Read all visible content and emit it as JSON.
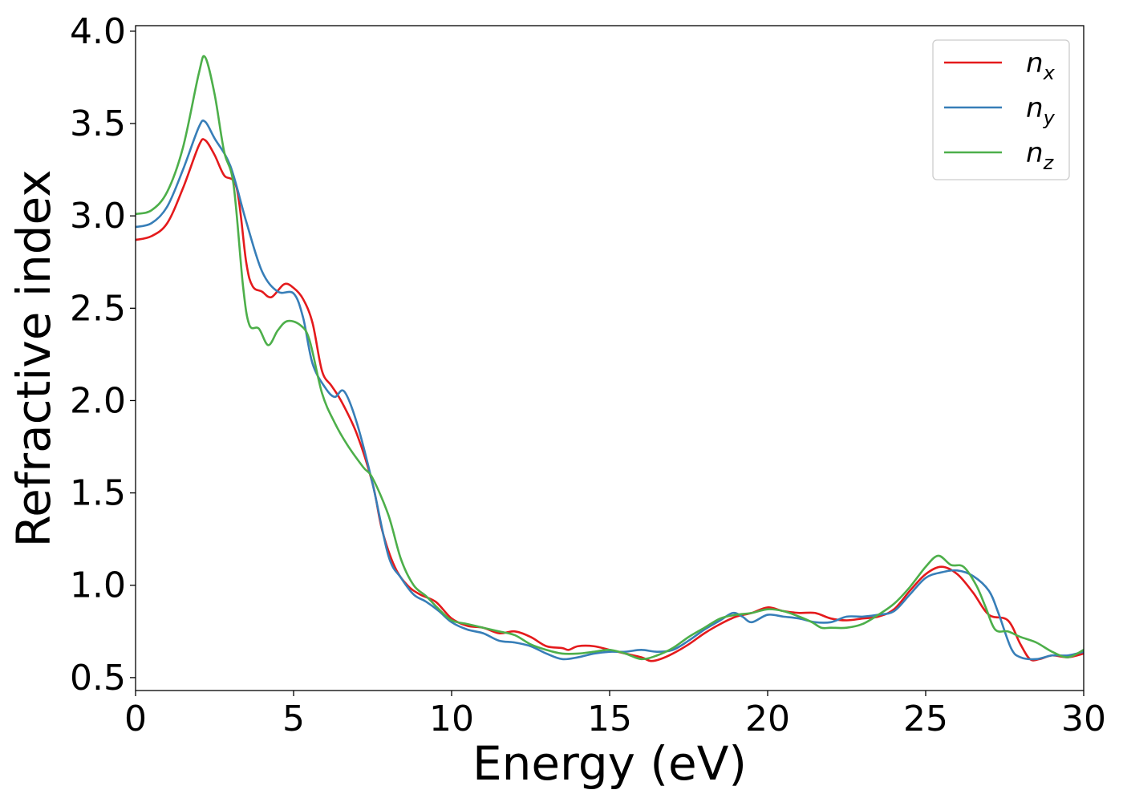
{
  "chart_data": {
    "type": "line",
    "title": "",
    "xlabel": "Energy (eV)",
    "ylabel": "Refractive index",
    "xlim": [
      0,
      30
    ],
    "ylim": [
      0.43,
      4.03
    ],
    "xticks": [
      0,
      5,
      10,
      15,
      20,
      25,
      30
    ],
    "xtick_labels": [
      "0",
      "5",
      "10",
      "15",
      "20",
      "25",
      "30"
    ],
    "yticks": [
      0.5,
      1.0,
      1.5,
      2.0,
      2.5,
      3.0,
      3.5,
      4.0
    ],
    "ytick_labels": [
      "0.5",
      "1.0",
      "1.5",
      "2.0",
      "2.5",
      "3.0",
      "3.5",
      "4.0"
    ],
    "grid": false,
    "legend_position": "top-right",
    "series": [
      {
        "name": "n",
        "subscript": "x",
        "color": "#e41a1c",
        "points": [
          [
            0,
            2.87
          ],
          [
            0.5,
            2.89
          ],
          [
            1,
            2.96
          ],
          [
            1.5,
            3.15
          ],
          [
            2,
            3.38
          ],
          [
            2.2,
            3.41
          ],
          [
            2.5,
            3.33
          ],
          [
            2.8,
            3.22
          ],
          [
            3.2,
            3.15
          ],
          [
            3.5,
            2.75
          ],
          [
            3.7,
            2.62
          ],
          [
            4,
            2.59
          ],
          [
            4.3,
            2.56
          ],
          [
            4.7,
            2.63
          ],
          [
            5,
            2.61
          ],
          [
            5.3,
            2.55
          ],
          [
            5.6,
            2.42
          ],
          [
            5.9,
            2.16
          ],
          [
            6.2,
            2.08
          ],
          [
            6.5,
            2.0
          ],
          [
            7,
            1.82
          ],
          [
            7.5,
            1.55
          ],
          [
            7.8,
            1.3
          ],
          [
            8.2,
            1.1
          ],
          [
            8.6,
            1.0
          ],
          [
            9,
            0.95
          ],
          [
            9.5,
            0.91
          ],
          [
            10,
            0.82
          ],
          [
            10.5,
            0.78
          ],
          [
            11,
            0.77
          ],
          [
            11.5,
            0.74
          ],
          [
            12,
            0.75
          ],
          [
            12.5,
            0.72
          ],
          [
            13,
            0.67
          ],
          [
            13.5,
            0.66
          ],
          [
            13.7,
            0.65
          ],
          [
            14,
            0.67
          ],
          [
            14.5,
            0.67
          ],
          [
            15,
            0.65
          ],
          [
            15.5,
            0.63
          ],
          [
            16,
            0.61
          ],
          [
            16.3,
            0.59
          ],
          [
            16.6,
            0.6
          ],
          [
            17,
            0.63
          ],
          [
            17.5,
            0.68
          ],
          [
            18,
            0.74
          ],
          [
            18.5,
            0.79
          ],
          [
            19,
            0.83
          ],
          [
            19.5,
            0.85
          ],
          [
            20,
            0.88
          ],
          [
            20.5,
            0.86
          ],
          [
            21,
            0.85
          ],
          [
            21.5,
            0.85
          ],
          [
            22,
            0.82
          ],
          [
            22.5,
            0.81
          ],
          [
            23,
            0.82
          ],
          [
            23.5,
            0.83
          ],
          [
            24,
            0.87
          ],
          [
            24.5,
            0.97
          ],
          [
            25,
            1.06
          ],
          [
            25.5,
            1.1
          ],
          [
            26,
            1.06
          ],
          [
            26.5,
            0.96
          ],
          [
            27,
            0.84
          ],
          [
            27.6,
            0.81
          ],
          [
            28,
            0.68
          ],
          [
            28.3,
            0.6
          ],
          [
            28.6,
            0.6
          ],
          [
            29,
            0.62
          ],
          [
            29.5,
            0.61
          ],
          [
            30,
            0.63
          ]
        ]
      },
      {
        "name": "n",
        "subscript": "y",
        "color": "#377eb8",
        "points": [
          [
            0,
            2.94
          ],
          [
            0.5,
            2.96
          ],
          [
            1,
            3.05
          ],
          [
            1.5,
            3.25
          ],
          [
            2,
            3.48
          ],
          [
            2.2,
            3.51
          ],
          [
            2.5,
            3.42
          ],
          [
            3,
            3.27
          ],
          [
            3.5,
            2.97
          ],
          [
            4,
            2.7
          ],
          [
            4.5,
            2.59
          ],
          [
            5,
            2.58
          ],
          [
            5.3,
            2.45
          ],
          [
            5.6,
            2.2
          ],
          [
            6,
            2.07
          ],
          [
            6.3,
            2.02
          ],
          [
            6.6,
            2.05
          ],
          [
            7,
            1.88
          ],
          [
            7.5,
            1.55
          ],
          [
            8,
            1.16
          ],
          [
            8.4,
            1.04
          ],
          [
            8.8,
            0.95
          ],
          [
            9.2,
            0.91
          ],
          [
            9.6,
            0.86
          ],
          [
            10,
            0.8
          ],
          [
            10.5,
            0.76
          ],
          [
            11,
            0.74
          ],
          [
            11.5,
            0.7
          ],
          [
            12,
            0.69
          ],
          [
            12.5,
            0.67
          ],
          [
            13,
            0.63
          ],
          [
            13.5,
            0.6
          ],
          [
            14,
            0.61
          ],
          [
            14.5,
            0.63
          ],
          [
            15,
            0.64
          ],
          [
            15.5,
            0.64
          ],
          [
            16,
            0.65
          ],
          [
            16.5,
            0.64
          ],
          [
            17,
            0.65
          ],
          [
            17.5,
            0.7
          ],
          [
            18,
            0.76
          ],
          [
            18.5,
            0.81
          ],
          [
            18.9,
            0.85
          ],
          [
            19.2,
            0.83
          ],
          [
            19.5,
            0.8
          ],
          [
            20,
            0.84
          ],
          [
            20.5,
            0.83
          ],
          [
            21,
            0.82
          ],
          [
            21.5,
            0.8
          ],
          [
            22,
            0.8
          ],
          [
            22.5,
            0.83
          ],
          [
            23,
            0.83
          ],
          [
            23.5,
            0.84
          ],
          [
            24,
            0.86
          ],
          [
            24.5,
            0.95
          ],
          [
            25,
            1.04
          ],
          [
            25.5,
            1.07
          ],
          [
            26,
            1.08
          ],
          [
            26.5,
            1.05
          ],
          [
            27,
            0.97
          ],
          [
            27.3,
            0.85
          ],
          [
            27.7,
            0.66
          ],
          [
            28,
            0.61
          ],
          [
            28.5,
            0.6
          ],
          [
            29,
            0.62
          ],
          [
            29.5,
            0.62
          ],
          [
            30,
            0.64
          ]
        ]
      },
      {
        "name": "n",
        "subscript": "z",
        "color": "#4daf4a",
        "points": [
          [
            0,
            3.01
          ],
          [
            0.5,
            3.03
          ],
          [
            1,
            3.13
          ],
          [
            1.5,
            3.37
          ],
          [
            2,
            3.77
          ],
          [
            2.2,
            3.86
          ],
          [
            2.5,
            3.66
          ],
          [
            2.8,
            3.35
          ],
          [
            3.1,
            3.17
          ],
          [
            3.4,
            2.62
          ],
          [
            3.6,
            2.41
          ],
          [
            3.9,
            2.39
          ],
          [
            4.2,
            2.3
          ],
          [
            4.5,
            2.38
          ],
          [
            4.8,
            2.43
          ],
          [
            5.2,
            2.41
          ],
          [
            5.5,
            2.33
          ],
          [
            5.9,
            2.04
          ],
          [
            6.3,
            1.88
          ],
          [
            6.7,
            1.76
          ],
          [
            7.2,
            1.64
          ],
          [
            7.5,
            1.58
          ],
          [
            8,
            1.38
          ],
          [
            8.4,
            1.14
          ],
          [
            8.8,
            1.0
          ],
          [
            9.2,
            0.94
          ],
          [
            9.6,
            0.87
          ],
          [
            10,
            0.81
          ],
          [
            10.5,
            0.79
          ],
          [
            11,
            0.77
          ],
          [
            11.5,
            0.75
          ],
          [
            12,
            0.73
          ],
          [
            12.5,
            0.68
          ],
          [
            13,
            0.65
          ],
          [
            13.5,
            0.63
          ],
          [
            14,
            0.63
          ],
          [
            14.5,
            0.64
          ],
          [
            15,
            0.65
          ],
          [
            15.5,
            0.63
          ],
          [
            16,
            0.6
          ],
          [
            16.5,
            0.62
          ],
          [
            17,
            0.66
          ],
          [
            17.5,
            0.72
          ],
          [
            18,
            0.77
          ],
          [
            18.5,
            0.82
          ],
          [
            19,
            0.84
          ],
          [
            19.5,
            0.85
          ],
          [
            20,
            0.87
          ],
          [
            20.5,
            0.86
          ],
          [
            21,
            0.83
          ],
          [
            21.4,
            0.8
          ],
          [
            21.7,
            0.77
          ],
          [
            22,
            0.77
          ],
          [
            22.5,
            0.77
          ],
          [
            23,
            0.79
          ],
          [
            23.5,
            0.84
          ],
          [
            24,
            0.9
          ],
          [
            24.5,
            0.99
          ],
          [
            25,
            1.1
          ],
          [
            25.4,
            1.16
          ],
          [
            25.8,
            1.11
          ],
          [
            26.2,
            1.1
          ],
          [
            26.6,
            1.0
          ],
          [
            26.9,
            0.88
          ],
          [
            27.2,
            0.76
          ],
          [
            27.6,
            0.75
          ],
          [
            28,
            0.72
          ],
          [
            28.5,
            0.69
          ],
          [
            29,
            0.64
          ],
          [
            29.5,
            0.61
          ],
          [
            30,
            0.65
          ]
        ]
      }
    ]
  }
}
